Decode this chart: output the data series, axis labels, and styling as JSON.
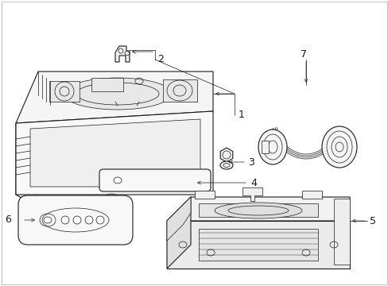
{
  "background_color": "#ffffff",
  "line_color": "#1a1a1a",
  "lw": 0.8,
  "tlw": 0.5,
  "fig_w": 4.89,
  "fig_h": 3.6,
  "dpi": 100
}
